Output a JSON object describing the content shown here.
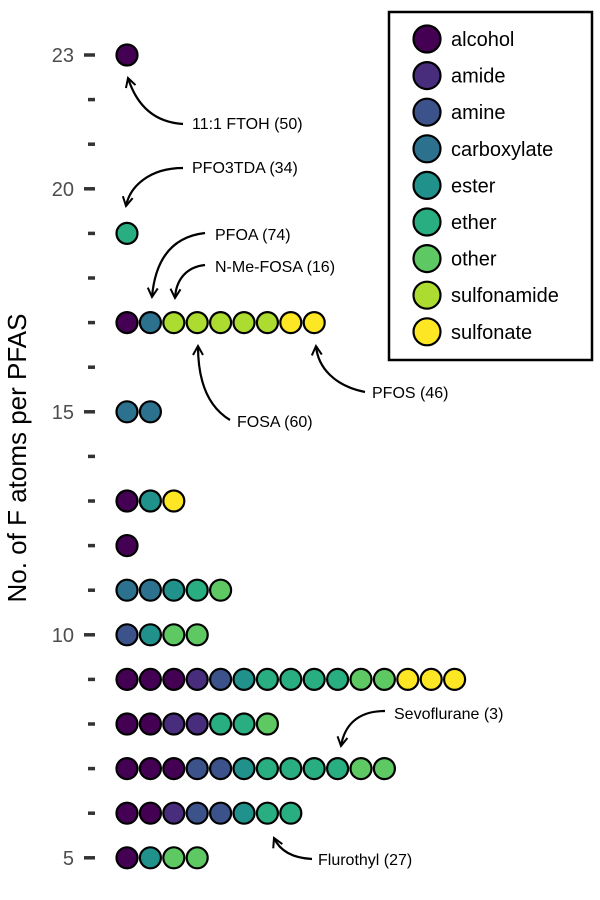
{
  "chart_data": {
    "type": "scatter",
    "ylabel": "No. of F atoms per PFAS",
    "xlabel": "",
    "ylim": [
      4.5,
      23.5
    ],
    "y_tick_labels": [
      "5",
      "10",
      "15",
      "20",
      "23"
    ],
    "y_ticks_labeled": [
      5,
      10,
      15,
      20,
      23
    ],
    "y_ticks_unlabeled": [
      6,
      7,
      8,
      9,
      11,
      12,
      13,
      14,
      16,
      17,
      18,
      19,
      21,
      22
    ],
    "grid": false,
    "legend_position": "top-right",
    "categories": [
      "alcohol",
      "amide",
      "amine",
      "carboxylate",
      "ester",
      "ether",
      "other",
      "sulfonamide",
      "sulfonate"
    ],
    "colors": {
      "alcohol": "#440154",
      "amide": "#472d7b",
      "amine": "#3b528b",
      "carboxylate": "#2c728e",
      "ester": "#21918c",
      "ether": "#28ae80",
      "other": "#5ec962",
      "sulfonamide": "#addc30",
      "sulfonate": "#fde725"
    },
    "rows": [
      {
        "y": 23,
        "points": [
          "alcohol"
        ]
      },
      {
        "y": 19,
        "points": [
          "ether"
        ]
      },
      {
        "y": 17,
        "points": [
          "alcohol",
          "carboxylate",
          "sulfonamide",
          "sulfonamide",
          "sulfonamide",
          "sulfonamide",
          "sulfonamide",
          "sulfonate",
          "sulfonate"
        ]
      },
      {
        "y": 15,
        "points": [
          "carboxylate",
          "carboxylate"
        ]
      },
      {
        "y": 13,
        "points": [
          "alcohol",
          "ester",
          "sulfonate"
        ]
      },
      {
        "y": 12,
        "points": [
          "alcohol"
        ]
      },
      {
        "y": 11,
        "points": [
          "carboxylate",
          "carboxylate",
          "ester",
          "ether",
          "other"
        ]
      },
      {
        "y": 10,
        "points": [
          "amine",
          "ester",
          "other",
          "other"
        ]
      },
      {
        "y": 9,
        "points": [
          "alcohol",
          "alcohol",
          "alcohol",
          "amide",
          "amine",
          "ester",
          "ether",
          "ether",
          "ether",
          "ether",
          "other",
          "other",
          "sulfonate",
          "sulfonate",
          "sulfonate"
        ]
      },
      {
        "y": 8,
        "points": [
          "alcohol",
          "alcohol",
          "amide",
          "amide",
          "ether",
          "ether",
          "other"
        ]
      },
      {
        "y": 7,
        "points": [
          "alcohol",
          "alcohol",
          "alcohol",
          "amine",
          "amine",
          "ester",
          "ether",
          "ether",
          "ether",
          "ether",
          "other",
          "other"
        ]
      },
      {
        "y": 6,
        "points": [
          "alcohol",
          "alcohol",
          "amide",
          "amine",
          "amine",
          "ester",
          "ether",
          "ether"
        ]
      },
      {
        "y": 5,
        "points": [
          "alcohol",
          "ester",
          "other",
          "other"
        ]
      }
    ],
    "annotations": [
      {
        "text": "11:1 FTOH (50)",
        "y": 23,
        "index": 0
      },
      {
        "text": "PFO3TDA (34)",
        "y": 19,
        "index": 0
      },
      {
        "text": "PFOA (74)",
        "y": 17,
        "index": 1
      },
      {
        "text": "N-Me-FOSA (16)",
        "y": 17,
        "index": 2
      },
      {
        "text": "FOSA (60)",
        "y": 17,
        "index": 3
      },
      {
        "text": "PFOS (46)",
        "y": 17,
        "index": 8
      },
      {
        "text": "Sevoflurane (3)",
        "y": 7,
        "index": 9
      },
      {
        "text": "Flurothyl (27)",
        "y": 6,
        "index": 6
      }
    ]
  }
}
